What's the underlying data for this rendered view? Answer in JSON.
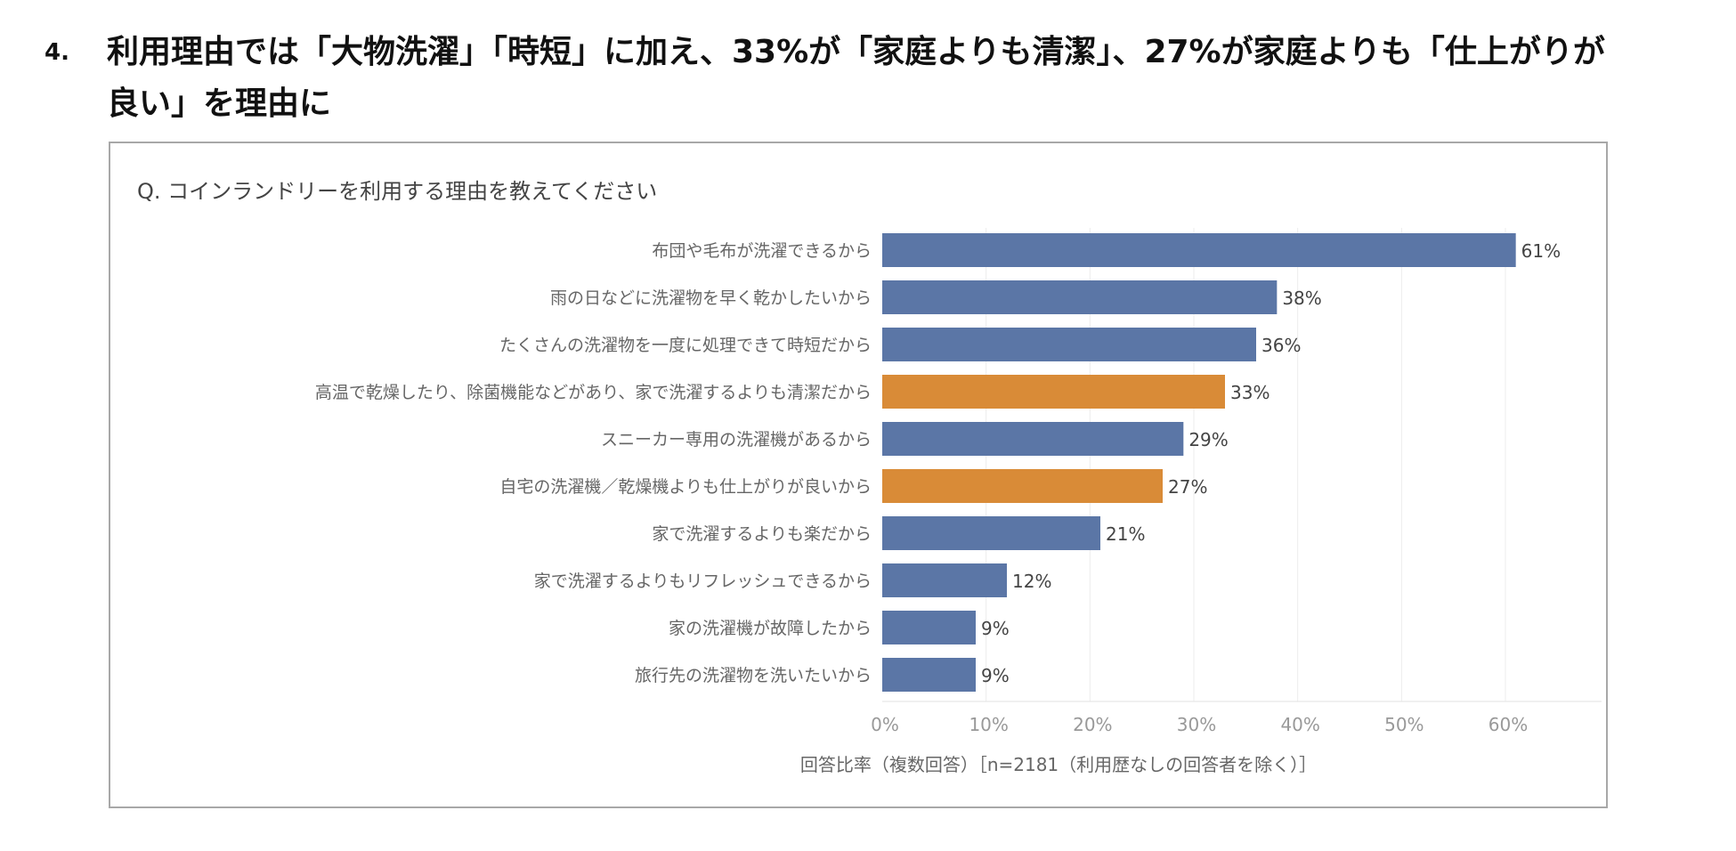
{
  "page": {
    "heading_number": "4.",
    "heading_text": "利用理由では「大物洗濯」「時短」に加え、33%が「家庭よりも清潔」、27%が家庭よりも「仕上がりが良い」を理由に"
  },
  "chart_data": {
    "type": "bar",
    "orientation": "horizontal",
    "title": "Q. コインランドリーを利用する理由を教えてください",
    "categories": [
      "布団や毛布が洗濯できるから",
      "雨の日などに洗濯物を早く乾かしたいから",
      "たくさんの洗濯物を一度に処理できて時短だから",
      "高温で乾燥したり、除菌機能などがあり、家で洗濯するよりも清潔だから",
      "スニーカー専用の洗濯機があるから",
      "自宅の洗濯機／乾燥機よりも仕上がりが良いから",
      "家で洗濯するよりも楽だから",
      "家で洗濯するよりもリフレッシュできるから",
      "家の洗濯機が故障したから",
      "旅行先の洗濯物を洗いたいから"
    ],
    "values": [
      61,
      38,
      36,
      33,
      29,
      27,
      21,
      12,
      9,
      9
    ],
    "value_labels": [
      "61%",
      "38%",
      "36%",
      "33%",
      "29%",
      "27%",
      "21%",
      "12%",
      "9%",
      "9%"
    ],
    "highlighted": [
      false,
      false,
      false,
      true,
      false,
      true,
      false,
      false,
      false,
      false
    ],
    "x_ticks": [
      0,
      10,
      20,
      30,
      40,
      50,
      60
    ],
    "x_tick_labels": [
      "0%",
      "10%",
      "20%",
      "30%",
      "40%",
      "50%",
      "60%"
    ],
    "xlim": [
      0,
      70
    ],
    "xlabel": "回答比率（複数回答）［n=2181（利用歴なしの回答者を除く）］",
    "grid": true,
    "colors": {
      "default": "#5b76a6",
      "highlight": "#d98b37",
      "grid": "#ececec"
    }
  }
}
